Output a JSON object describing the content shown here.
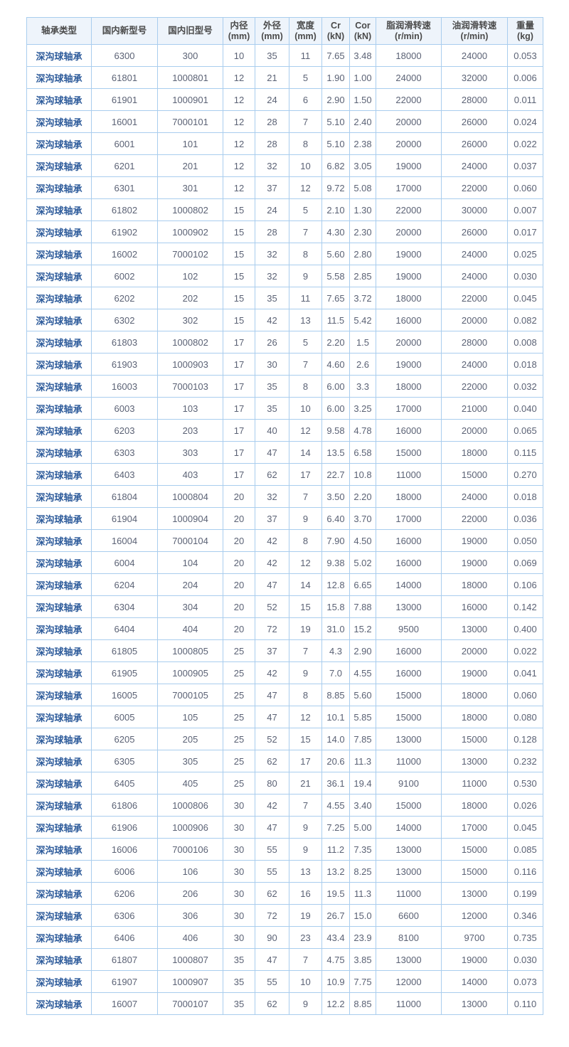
{
  "headers": [
    "轴承类型",
    "国内新型号",
    "国内旧型号",
    "内径\n(mm)",
    "外径\n(mm)",
    "宽度\n(mm)",
    "Cr\n(kN)",
    "Cor\n(kN)",
    "脂润滑转速\n(r/min)",
    "油润滑转速\n(r/min)",
    "重量\n(kg)"
  ],
  "colors": {
    "border": "#a9cdee",
    "header_bg": "#eef4fb",
    "type_text": "#2c5a9a",
    "cell_text": "#5b6275"
  },
  "rows": [
    [
      "深沟球轴承",
      "6300",
      "300",
      "10",
      "35",
      "11",
      "7.65",
      "3.48",
      "18000",
      "24000",
      "0.053"
    ],
    [
      "深沟球轴承",
      "61801",
      "1000801",
      "12",
      "21",
      "5",
      "1.90",
      "1.00",
      "24000",
      "32000",
      "0.006"
    ],
    [
      "深沟球轴承",
      "61901",
      "1000901",
      "12",
      "24",
      "6",
      "2.90",
      "1.50",
      "22000",
      "28000",
      "0.011"
    ],
    [
      "深沟球轴承",
      "16001",
      "7000101",
      "12",
      "28",
      "7",
      "5.10",
      "2.40",
      "20000",
      "26000",
      "0.024"
    ],
    [
      "深沟球轴承",
      "6001",
      "101",
      "12",
      "28",
      "8",
      "5.10",
      "2.38",
      "20000",
      "26000",
      "0.022"
    ],
    [
      "深沟球轴承",
      "6201",
      "201",
      "12",
      "32",
      "10",
      "6.82",
      "3.05",
      "19000",
      "24000",
      "0.037"
    ],
    [
      "深沟球轴承",
      "6301",
      "301",
      "12",
      "37",
      "12",
      "9.72",
      "5.08",
      "17000",
      "22000",
      "0.060"
    ],
    [
      "深沟球轴承",
      "61802",
      "1000802",
      "15",
      "24",
      "5",
      "2.10",
      "1.30",
      "22000",
      "30000",
      "0.007"
    ],
    [
      "深沟球轴承",
      "61902",
      "1000902",
      "15",
      "28",
      "7",
      "4.30",
      "2.30",
      "20000",
      "26000",
      "0.017"
    ],
    [
      "深沟球轴承",
      "16002",
      "7000102",
      "15",
      "32",
      "8",
      "5.60",
      "2.80",
      "19000",
      "24000",
      "0.025"
    ],
    [
      "深沟球轴承",
      "6002",
      "102",
      "15",
      "32",
      "9",
      "5.58",
      "2.85",
      "19000",
      "24000",
      "0.030"
    ],
    [
      "深沟球轴承",
      "6202",
      "202",
      "15",
      "35",
      "11",
      "7.65",
      "3.72",
      "18000",
      "22000",
      "0.045"
    ],
    [
      "深沟球轴承",
      "6302",
      "302",
      "15",
      "42",
      "13",
      "11.5",
      "5.42",
      "16000",
      "20000",
      "0.082"
    ],
    [
      "深沟球轴承",
      "61803",
      "1000802",
      "17",
      "26",
      "5",
      "2.20",
      "1.5",
      "20000",
      "28000",
      "0.008"
    ],
    [
      "深沟球轴承",
      "61903",
      "1000903",
      "17",
      "30",
      "7",
      "4.60",
      "2.6",
      "19000",
      "24000",
      "0.018"
    ],
    [
      "深沟球轴承",
      "16003",
      "7000103",
      "17",
      "35",
      "8",
      "6.00",
      "3.3",
      "18000",
      "22000",
      "0.032"
    ],
    [
      "深沟球轴承",
      "6003",
      "103",
      "17",
      "35",
      "10",
      "6.00",
      "3.25",
      "17000",
      "21000",
      "0.040"
    ],
    [
      "深沟球轴承",
      "6203",
      "203",
      "17",
      "40",
      "12",
      "9.58",
      "4.78",
      "16000",
      "20000",
      "0.065"
    ],
    [
      "深沟球轴承",
      "6303",
      "303",
      "17",
      "47",
      "14",
      "13.5",
      "6.58",
      "15000",
      "18000",
      "0.115"
    ],
    [
      "深沟球轴承",
      "6403",
      "403",
      "17",
      "62",
      "17",
      "22.7",
      "10.8",
      "11000",
      "15000",
      "0.270"
    ],
    [
      "深沟球轴承",
      "61804",
      "1000804",
      "20",
      "32",
      "7",
      "3.50",
      "2.20",
      "18000",
      "24000",
      "0.018"
    ],
    [
      "深沟球轴承",
      "61904",
      "1000904",
      "20",
      "37",
      "9",
      "6.40",
      "3.70",
      "17000",
      "22000",
      "0.036"
    ],
    [
      "深沟球轴承",
      "16004",
      "7000104",
      "20",
      "42",
      "8",
      "7.90",
      "4.50",
      "16000",
      "19000",
      "0.050"
    ],
    [
      "深沟球轴承",
      "6004",
      "104",
      "20",
      "42",
      "12",
      "9.38",
      "5.02",
      "16000",
      "19000",
      "0.069"
    ],
    [
      "深沟球轴承",
      "6204",
      "204",
      "20",
      "47",
      "14",
      "12.8",
      "6.65",
      "14000",
      "18000",
      "0.106"
    ],
    [
      "深沟球轴承",
      "6304",
      "304",
      "20",
      "52",
      "15",
      "15.8",
      "7.88",
      "13000",
      "16000",
      "0.142"
    ],
    [
      "深沟球轴承",
      "6404",
      "404",
      "20",
      "72",
      "19",
      "31.0",
      "15.2",
      "9500",
      "13000",
      "0.400"
    ],
    [
      "深沟球轴承",
      "61805",
      "1000805",
      "25",
      "37",
      "7",
      "4.3",
      "2.90",
      "16000",
      "20000",
      "0.022"
    ],
    [
      "深沟球轴承",
      "61905",
      "1000905",
      "25",
      "42",
      "9",
      "7.0",
      "4.55",
      "16000",
      "19000",
      "0.041"
    ],
    [
      "深沟球轴承",
      "16005",
      "7000105",
      "25",
      "47",
      "8",
      "8.85",
      "5.60",
      "15000",
      "18000",
      "0.060"
    ],
    [
      "深沟球轴承",
      "6005",
      "105",
      "25",
      "47",
      "12",
      "10.1",
      "5.85",
      "15000",
      "18000",
      "0.080"
    ],
    [
      "深沟球轴承",
      "6205",
      "205",
      "25",
      "52",
      "15",
      "14.0",
      "7.85",
      "13000",
      "15000",
      "0.128"
    ],
    [
      "深沟球轴承",
      "6305",
      "305",
      "25",
      "62",
      "17",
      "20.6",
      "11.3",
      "11000",
      "13000",
      "0.232"
    ],
    [
      "深沟球轴承",
      "6405",
      "405",
      "25",
      "80",
      "21",
      "36.1",
      "19.4",
      "9100",
      "11000",
      "0.530"
    ],
    [
      "深沟球轴承",
      "61806",
      "1000806",
      "30",
      "42",
      "7",
      "4.55",
      "3.40",
      "15000",
      "18000",
      "0.026"
    ],
    [
      "深沟球轴承",
      "61906",
      "1000906",
      "30",
      "47",
      "9",
      "7.25",
      "5.00",
      "14000",
      "17000",
      "0.045"
    ],
    [
      "深沟球轴承",
      "16006",
      "7000106",
      "30",
      "55",
      "9",
      "11.2",
      "7.35",
      "13000",
      "15000",
      "0.085"
    ],
    [
      "深沟球轴承",
      "6006",
      "106",
      "30",
      "55",
      "13",
      "13.2",
      "8.25",
      "13000",
      "15000",
      "0.116"
    ],
    [
      "深沟球轴承",
      "6206",
      "206",
      "30",
      "62",
      "16",
      "19.5",
      "11.3",
      "11000",
      "13000",
      "0.199"
    ],
    [
      "深沟球轴承",
      "6306",
      "306",
      "30",
      "72",
      "19",
      "26.7",
      "15.0",
      "6600",
      "12000",
      "0.346"
    ],
    [
      "深沟球轴承",
      "6406",
      "406",
      "30",
      "90",
      "23",
      "43.4",
      "23.9",
      "8100",
      "9700",
      "0.735"
    ],
    [
      "深沟球轴承",
      "61807",
      "1000807",
      "35",
      "47",
      "7",
      "4.75",
      "3.85",
      "13000",
      "19000",
      "0.030"
    ],
    [
      "深沟球轴承",
      "61907",
      "1000907",
      "35",
      "55",
      "10",
      "10.9",
      "7.75",
      "12000",
      "14000",
      "0.073"
    ],
    [
      "深沟球轴承",
      "16007",
      "7000107",
      "35",
      "62",
      "9",
      "12.2",
      "8.85",
      "11000",
      "13000",
      "0.110"
    ]
  ]
}
